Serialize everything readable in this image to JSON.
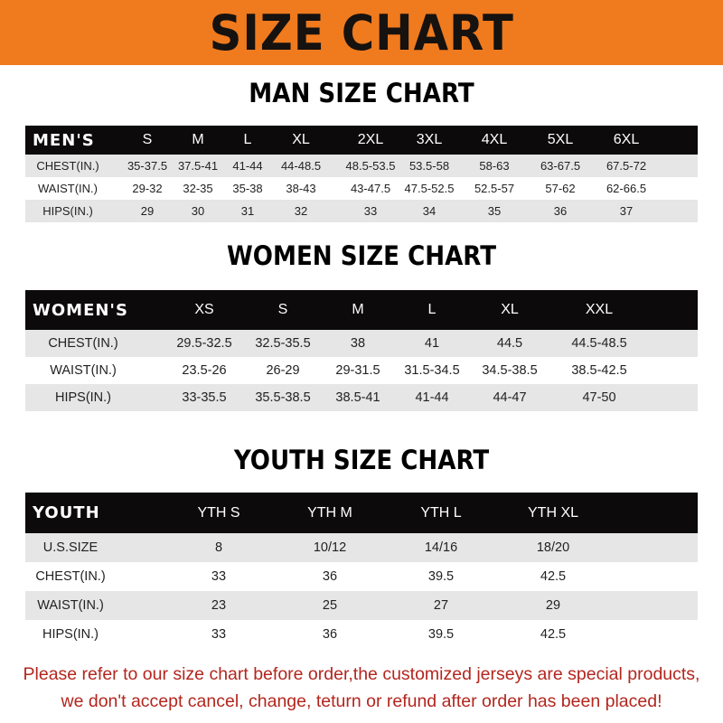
{
  "banner": {
    "title": "SIZE CHART",
    "color": "#f07a1e"
  },
  "men": {
    "title": "MAN SIZE CHART",
    "header": [
      "MEN'S",
      "S",
      "M",
      "L",
      "XL",
      "2XL",
      "3XL",
      "4XL",
      "5XL",
      "6XL"
    ],
    "rows": [
      [
        "CHEST(IN.)",
        "35-37.5",
        "37.5-41",
        "41-44",
        "44-48.5",
        "48.5-53.5",
        "53.5-58",
        "58-63",
        "63-67.5",
        "67.5-72"
      ],
      [
        "WAIST(IN.)",
        "29-32",
        "32-35",
        "35-38",
        "38-43",
        "43-47.5",
        "47.5-52.5",
        "52.5-57",
        "57-62",
        "62-66.5"
      ],
      [
        "HIPS(IN.)",
        "29",
        "30",
        "31",
        "32",
        "33",
        "34",
        "35",
        "36",
        "37"
      ]
    ]
  },
  "women": {
    "title": "WOMEN SIZE CHART",
    "header": [
      "WOMEN'S",
      "XS",
      "S",
      "M",
      "L",
      "XL",
      "XXL"
    ],
    "rows": [
      [
        "CHEST(IN.)",
        "29.5-32.5",
        "32.5-35.5",
        "38",
        "41",
        "44.5",
        "44.5-48.5"
      ],
      [
        "WAIST(IN.)",
        "23.5-26",
        "26-29",
        "29-31.5",
        "31.5-34.5",
        "34.5-38.5",
        "38.5-42.5"
      ],
      [
        "HIPS(IN.)",
        "33-35.5",
        "35.5-38.5",
        "38.5-41",
        "41-44",
        "44-47",
        "47-50"
      ]
    ]
  },
  "youth": {
    "title": "YOUTH SIZE CHART",
    "header": [
      "YOUTH",
      "YTH S",
      "YTH M",
      "YTH L",
      "YTH XL"
    ],
    "rows": [
      [
        "U.S.SIZE",
        "8",
        "10/12",
        "14/16",
        "18/20"
      ],
      [
        "CHEST(IN.)",
        "33",
        "36",
        "39.5",
        "42.5"
      ],
      [
        "WAIST(IN.)",
        "23",
        "25",
        "27",
        "29"
      ],
      [
        "HIPS(IN.)",
        "33",
        "36",
        "39.5",
        "42.5"
      ]
    ]
  },
  "notice": {
    "line1": "Please refer to our size chart before order,the customized jerseys are special products,",
    "line2": "we don't accept cancel, change, teturn or refund after order has been placed!",
    "color": "#b3261e"
  }
}
